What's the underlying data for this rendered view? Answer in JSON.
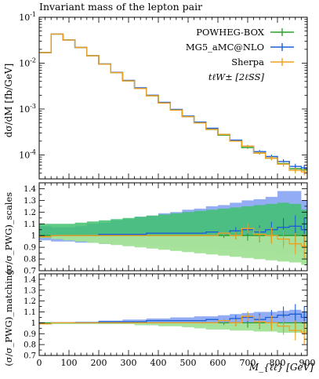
{
  "chart_data": {
    "type": "line",
    "title": "Invariant mass of the lepton pair",
    "xlabel": "M_{ℓℓ} [GeV]",
    "xlim": [
      0,
      900
    ],
    "x_edges": [
      0,
      40,
      80,
      120,
      160,
      200,
      240,
      280,
      320,
      360,
      400,
      440,
      480,
      520,
      560,
      600,
      640,
      680,
      720,
      760,
      800,
      840,
      880,
      900
    ],
    "x_tick_labels": [
      "0",
      "100",
      "200",
      "300",
      "400",
      "500",
      "600",
      "700",
      "800",
      "900"
    ],
    "legend": {
      "placement": "top-right",
      "entries": [
        "POWHEG-BOX",
        "MG5_aMC@NLO",
        "Sherpa"
      ],
      "process_label": "tℓW± [2ℓSS]"
    },
    "colors": {
      "powheg": "#2ca02c",
      "mg5": "#1f5fd6",
      "sherpa": "#f0a01e",
      "band_mg5": "#7f9ff2",
      "band_powheg": "#3fbf6f",
      "band_sherpa": "#b5e8a0"
    },
    "main": {
      "ylabel": "dσ/dM [fb/GeV]",
      "yscale": "log",
      "ylim": [
        3e-05,
        0.1
      ],
      "y_tick_labels": [
        "10^{-4}",
        "10^{-3}",
        "10^{-2}",
        "10^{-1}"
      ],
      "series": [
        {
          "name": "POWHEG-BOX",
          "values": [
            0.017,
            0.043,
            0.032,
            0.022,
            0.0145,
            0.0095,
            0.0062,
            0.0041,
            0.0028,
            0.00195,
            0.00135,
            0.00095,
            0.00068,
            0.0005,
            0.00036,
            0.00027,
            0.0002,
            0.000145,
            0.00011,
            8.5e-05,
            6.5e-05,
            5e-05,
            4.7e-05
          ]
        },
        {
          "name": "MG5_aMC@NLO",
          "values": [
            0.017,
            0.043,
            0.032,
            0.022,
            0.0146,
            0.0096,
            0.0063,
            0.0042,
            0.0029,
            0.002,
            0.0014,
            0.00098,
            0.0007,
            0.00052,
            0.00038,
            0.00028,
            0.00021,
            0.000155,
            0.000118,
            9.2e-05,
            7.2e-05,
            5.6e-05,
            5.2e-05
          ]
        },
        {
          "name": "Sherpa",
          "values": [
            0.017,
            0.043,
            0.032,
            0.022,
            0.0145,
            0.0095,
            0.0062,
            0.0041,
            0.0028,
            0.00195,
            0.00135,
            0.00095,
            0.00068,
            0.0005,
            0.00036,
            0.00028,
            0.0002,
            0.000155,
            0.00011,
            8.5e-05,
            6.3e-05,
            4.6e-05,
            4.3e-05
          ]
        }
      ]
    },
    "scales": {
      "ylabel": "(σ/σ_PWG)_scales",
      "ylim": [
        0.7,
        1.45
      ],
      "y_tick_labels": [
        "0.7",
        "0.8",
        "0.9",
        "1",
        "1.1",
        "1.2",
        "1.3",
        "1.4"
      ],
      "bands": [
        {
          "name": "MG5_aMC@NLO",
          "upper": [
            1.08,
            1.07,
            1.07,
            1.08,
            1.1,
            1.11,
            1.13,
            1.14,
            1.16,
            1.17,
            1.19,
            1.2,
            1.22,
            1.23,
            1.25,
            1.26,
            1.28,
            1.3,
            1.31,
            1.33,
            1.38,
            1.38,
            1.3
          ],
          "lower": [
            0.96,
            0.95,
            0.95,
            0.94,
            0.94,
            0.93,
            0.93,
            0.92,
            0.92,
            0.91,
            0.91,
            0.9,
            0.9,
            0.89,
            0.89,
            0.88,
            0.88,
            0.87,
            0.87,
            0.86,
            0.85,
            0.86,
            0.85
          ]
        },
        {
          "name": "POWHEG-BOX",
          "upper": [
            1.1,
            1.1,
            1.1,
            1.11,
            1.12,
            1.13,
            1.14,
            1.15,
            1.16,
            1.17,
            1.18,
            1.19,
            1.2,
            1.21,
            1.22,
            1.23,
            1.24,
            1.25,
            1.26,
            1.27,
            1.28,
            1.27,
            1.22
          ],
          "lower": [
            0.98,
            0.97,
            0.96,
            0.95,
            0.94,
            0.93,
            0.92,
            0.91,
            0.9,
            0.89,
            0.88,
            0.87,
            0.86,
            0.85,
            0.84,
            0.83,
            0.82,
            0.81,
            0.8,
            0.79,
            0.78,
            0.77,
            0.75
          ]
        },
        {
          "name": "Sherpa",
          "upper": [
            1.0,
            1.0,
            1.0,
            1.0,
            1.0,
            1.0,
            1.0,
            1.0,
            1.0,
            1.0,
            1.0,
            1.0,
            1.0,
            1.0,
            1.0,
            1.0,
            1.0,
            1.0,
            1.0,
            1.0,
            1.0,
            1.0,
            1.0
          ],
          "lower": [
            0.98,
            0.97,
            0.96,
            0.95,
            0.94,
            0.93,
            0.92,
            0.91,
            0.9,
            0.89,
            0.88,
            0.87,
            0.86,
            0.85,
            0.84,
            0.83,
            0.82,
            0.81,
            0.8,
            0.79,
            0.78,
            0.77,
            0.75
          ]
        }
      ],
      "series": [
        {
          "name": "POWHEG-BOX",
          "values": [
            1,
            1,
            1,
            1,
            1,
            1,
            1,
            1,
            1,
            1,
            1,
            1,
            1,
            1,
            1,
            1,
            1,
            1,
            1,
            1,
            1,
            1,
            1
          ]
        },
        {
          "name": "MG5_aMC@NLO",
          "values": [
            0.99,
            1.0,
            1.0,
            1.0,
            1.0,
            1.01,
            1.01,
            1.01,
            1.01,
            1.02,
            1.02,
            1.02,
            1.02,
            1.02,
            1.03,
            1.02,
            1.04,
            1.05,
            1.03,
            1.05,
            1.07,
            1.08,
            1.05
          ]
        },
        {
          "name": "Sherpa",
          "values": [
            0.99,
            1.0,
            1.0,
            1.0,
            1.0,
            1.0,
            1.0,
            1.0,
            1.0,
            1.0,
            1.0,
            1.0,
            1.0,
            1.0,
            1.0,
            1.02,
            1.0,
            1.06,
            1.01,
            1.0,
            0.97,
            0.93,
            0.91
          ]
        }
      ]
    },
    "matching": {
      "ylabel": "(σ/σ_PWG)_matching",
      "ylim": [
        0.7,
        1.45
      ],
      "y_tick_labels": [
        "0.7",
        "0.8",
        "0.9",
        "1",
        "1.1",
        "1.2",
        "1.3",
        "1.4"
      ],
      "bands": [
        {
          "name": "MG5_aMC@NLO",
          "upper": [
            1.0,
            1.0,
            1.0,
            1.01,
            1.01,
            1.02,
            1.02,
            1.03,
            1.03,
            1.04,
            1.04,
            1.05,
            1.05,
            1.06,
            1.06,
            1.07,
            1.08,
            1.09,
            1.1,
            1.1,
            1.11,
            1.12,
            1.1
          ],
          "lower": [
            0.99,
            0.99,
            0.99,
            0.99,
            0.99,
            0.99,
            0.99,
            0.99,
            0.99,
            0.98,
            0.98,
            0.98,
            0.98,
            0.98,
            0.97,
            0.97,
            0.97,
            0.97,
            0.96,
            0.96,
            0.96,
            0.96,
            0.95
          ]
        },
        {
          "name": "POWHEG-BOX",
          "upper": [
            1.0,
            1.0,
            1.0,
            1.0,
            1.0,
            1.0,
            1.0,
            1.0,
            1.0,
            1.0,
            1.0,
            1.0,
            1.0,
            1.0,
            1.0,
            1.0,
            1.0,
            1.0,
            1.0,
            1.0,
            1.0,
            1.0,
            1.0
          ],
          "lower": [
            0.99,
            0.99,
            0.99,
            0.99,
            0.99,
            0.99,
            0.99,
            0.99,
            0.98,
            0.98,
            0.97,
            0.97,
            0.96,
            0.95,
            0.94,
            0.94,
            0.93,
            0.93,
            0.92,
            0.92,
            0.91,
            0.91,
            0.91
          ]
        },
        {
          "name": "Sherpa",
          "upper": [
            1.0,
            1.0,
            1.0,
            1.0,
            1.0,
            1.0,
            1.0,
            1.0,
            1.0,
            1.0,
            1.0,
            1.0,
            1.0,
            1.0,
            1.0,
            1.0,
            1.0,
            1.0,
            1.0,
            1.0,
            1.0,
            1.0,
            1.0
          ],
          "lower": [
            0.99,
            0.99,
            0.99,
            0.99,
            0.99,
            0.99,
            0.99,
            0.99,
            0.98,
            0.98,
            0.97,
            0.97,
            0.96,
            0.95,
            0.94,
            0.94,
            0.93,
            0.93,
            0.92,
            0.92,
            0.91,
            0.91,
            0.91
          ]
        }
      ],
      "series": [
        {
          "name": "POWHEG-BOX",
          "values": [
            1,
            1,
            1,
            1,
            1,
            1,
            1,
            1,
            1,
            1,
            1,
            1,
            1,
            1,
            1,
            1,
            1,
            1,
            1,
            1,
            1,
            1,
            1
          ]
        },
        {
          "name": "MG5_aMC@NLO",
          "values": [
            0.99,
            1.0,
            1.0,
            1.0,
            1.0,
            1.01,
            1.01,
            1.01,
            1.01,
            1.02,
            1.02,
            1.02,
            1.02,
            1.02,
            1.03,
            1.02,
            1.04,
            1.05,
            1.03,
            1.05,
            1.07,
            1.08,
            1.05
          ]
        },
        {
          "name": "Sherpa",
          "values": [
            0.99,
            1.0,
            1.0,
            1.0,
            1.0,
            1.0,
            1.0,
            1.0,
            1.0,
            1.0,
            1.0,
            1.0,
            1.0,
            1.0,
            1.0,
            1.02,
            1.0,
            1.06,
            1.01,
            1.0,
            0.97,
            0.93,
            0.91
          ]
        }
      ]
    }
  }
}
